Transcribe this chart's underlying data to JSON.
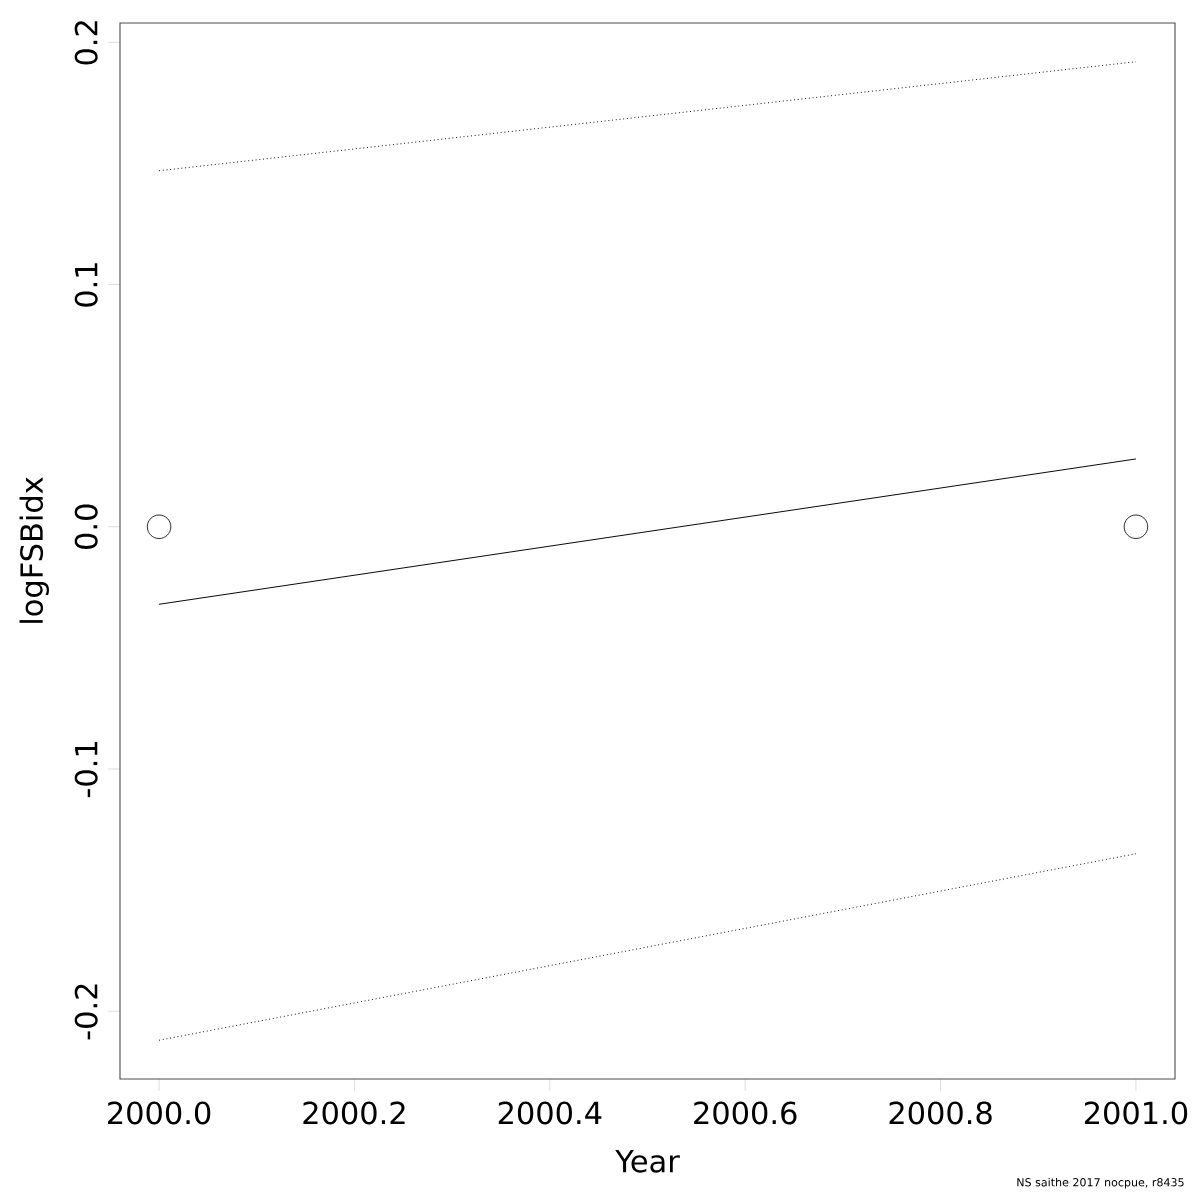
{
  "chart_data": {
    "type": "line",
    "xlabel": "Year",
    "ylabel": "logFSBidx",
    "x": [
      2000,
      2001
    ],
    "series": [
      {
        "type": "scatter",
        "color": "#000000",
        "marker": "circle",
        "values": [
          0,
          0
        ]
      },
      {
        "color": "#000000",
        "line_style": "solid",
        "values": [
          -0.032,
          0.028
        ]
      },
      {
        "color": "#000000",
        "line_style": "dotted",
        "values": [
          0.147,
          0.192
        ]
      },
      {
        "color": "#000000",
        "line_style": "dotted",
        "values": [
          -0.212,
          -0.135
        ]
      }
    ],
    "xlim": [
      1999.96,
      2001.04
    ],
    "ylim": [
      -0.228,
      0.208
    ],
    "xticks": [
      {
        "value": 2000,
        "label": "2000.0"
      },
      {
        "value": 2000.2,
        "label": "2000.2"
      },
      {
        "value": 2000.4,
        "label": "2000.4"
      },
      {
        "value": 2000.6,
        "label": "2000.6"
      },
      {
        "value": 2000.8,
        "label": "2000.8"
      },
      {
        "value": 2001,
        "label": "2001.0"
      }
    ],
    "yticks": [
      -0.2,
      -0.1,
      {
        "value": 0,
        "label": "0.0"
      },
      0.1,
      0.2
    ],
    "annotations": [
      "NS saithe 2017 nocpue, r8435"
    ]
  }
}
